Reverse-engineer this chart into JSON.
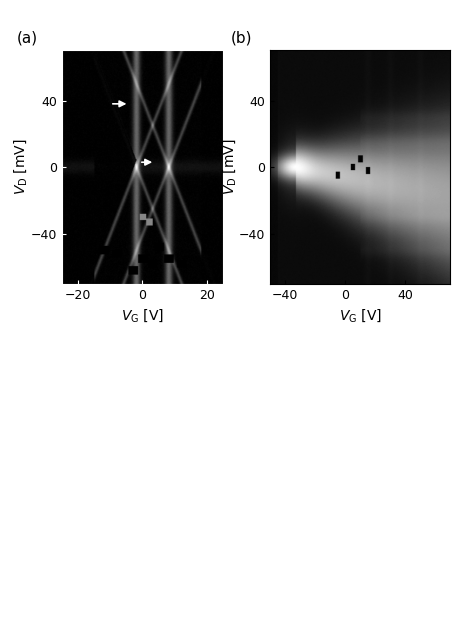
{
  "panel_a": {
    "label": "(a)",
    "xlim": [
      -25,
      25
    ],
    "ylim": [
      -70,
      70
    ],
    "xticks": [
      -20,
      0,
      20
    ],
    "yticks": [
      -40,
      0,
      40
    ],
    "xlabel": "$V_\\mathrm{G}$ [V]",
    "ylabel": "$V_\\mathrm{D}$ [mV]"
  },
  "panel_b": {
    "label": "(b)",
    "xlim": [
      -50,
      70
    ],
    "ylim": [
      -70,
      70
    ],
    "xticks": [
      -40,
      0,
      40
    ],
    "yticks": [
      -40,
      0,
      40
    ],
    "xlabel": "$V_\\mathrm{G}$ [V]",
    "ylabel": "$V_\\mathrm{D}$ [mV]"
  },
  "figure_bg": "#ffffff",
  "label_fontsize": 11,
  "tick_fontsize": 9,
  "axlabel_fontsize": 10
}
